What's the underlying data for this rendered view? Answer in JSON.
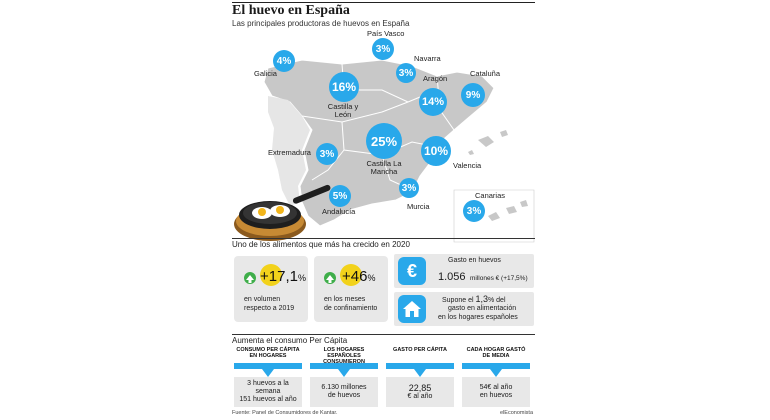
{
  "header": {
    "title": "El huevo en España",
    "subtitle": "Las principales productoras de huevos en España"
  },
  "regions": [
    {
      "name": "País Vasco",
      "pct": "3%"
    },
    {
      "name": "Galicia",
      "pct": "4%"
    },
    {
      "name": "Navarra",
      "pct": "3%"
    },
    {
      "name": "Cataluña",
      "pct": "9%"
    },
    {
      "name": "Aragón",
      "pct": "14%"
    },
    {
      "name": "Castilla y León",
      "pct": "16%"
    },
    {
      "name": "Castilla La Mancha",
      "pct": "25%"
    },
    {
      "name": "Extremadura",
      "pct": "3%"
    },
    {
      "name": "Valencia",
      "pct": "10%"
    },
    {
      "name": "Andalucía",
      "pct": "5%"
    },
    {
      "name": "Murcia",
      "pct": "3%"
    },
    {
      "name": "Canarias",
      "pct": "3%"
    }
  ],
  "growth": {
    "heading": "Uno de los alimentos que más ha crecido en 2020",
    "volume_value": "+17,1",
    "volume_unit": "%",
    "volume_text_1": "en volumen",
    "volume_text_2": "respecto a 2019",
    "months_value": "+46",
    "months_unit": "%",
    "months_text_1": "en los meses",
    "months_text_2": "de confinamiento",
    "spend_label": "Gasto en huevos",
    "spend_value": "1.056",
    "spend_unit": "millones € (+17,5%)",
    "share_text_1": "Supone el",
    "share_value": "1,3",
    "share_text_2": "% del",
    "share_text_3": "gasto en alimentación",
    "share_text_4": "en los hogares españoles"
  },
  "consumption": {
    "heading": "Aumenta el consumo Per Cápita",
    "columns": [
      {
        "head": "CONSUMO PER CÁPITA EN HOGARES",
        "line1": "3 huevos a la semana",
        "line2": "151 huevos al año"
      },
      {
        "head": "LOS HOGARES ESPAÑOLES CONSUMIERON",
        "line1": "6.130 millones",
        "line2": "de huevos"
      },
      {
        "head": "GASTO PER CÁPITA",
        "line1": "22,85",
        "line2": "€ al año"
      },
      {
        "head": "CADA HOGAR GASTÓ DE MEDIA",
        "line1": "54€ al año",
        "line2": "en huevos"
      }
    ]
  },
  "footer": {
    "source": "Fuente: Panel de Consumidores de Kantar.",
    "brand": "elEconomista"
  },
  "colors": {
    "accent": "#29a8ea",
    "map": "#c8c8c8",
    "growth_green": "#3fae4a",
    "highlight_yellow": "#f2d21b",
    "box_gray": "#e8e8e8"
  }
}
